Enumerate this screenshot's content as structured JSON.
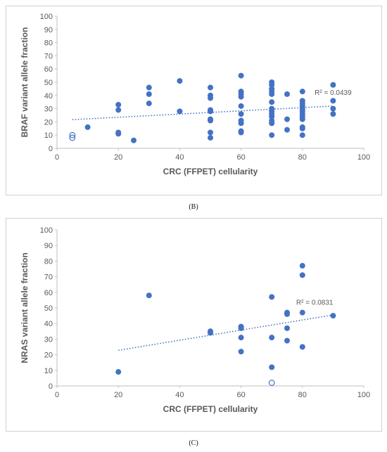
{
  "panels": {
    "b": {
      "caption": "(B)"
    },
    "c": {
      "caption": "(C)"
    }
  },
  "chart_data": [
    {
      "type": "scatter",
      "panel": "B",
      "title": "",
      "xlabel": "CRC (FFPET) cellularity",
      "ylabel": "BRAF variant allele fraction",
      "xlim": [
        0,
        100
      ],
      "ylim": [
        0,
        100
      ],
      "xticks": [
        0,
        20,
        40,
        60,
        80,
        100
      ],
      "yticks": [
        0,
        10,
        20,
        30,
        40,
        50,
        60,
        70,
        80,
        90,
        100
      ],
      "grid": false,
      "marker_color": "#4472c4",
      "points": [
        {
          "x": 10,
          "y": 16
        },
        {
          "x": 20,
          "y": 33
        },
        {
          "x": 20,
          "y": 29
        },
        {
          "x": 20,
          "y": 12
        },
        {
          "x": 20,
          "y": 11
        },
        {
          "x": 25,
          "y": 6
        },
        {
          "x": 30,
          "y": 46
        },
        {
          "x": 30,
          "y": 41
        },
        {
          "x": 30,
          "y": 34
        },
        {
          "x": 40,
          "y": 51
        },
        {
          "x": 40,
          "y": 28
        },
        {
          "x": 50,
          "y": 46
        },
        {
          "x": 50,
          "y": 40
        },
        {
          "x": 50,
          "y": 38
        },
        {
          "x": 50,
          "y": 29
        },
        {
          "x": 50,
          "y": 28
        },
        {
          "x": 50,
          "y": 22
        },
        {
          "x": 50,
          "y": 21
        },
        {
          "x": 50,
          "y": 12
        },
        {
          "x": 50,
          "y": 8
        },
        {
          "x": 60,
          "y": 55
        },
        {
          "x": 60,
          "y": 43
        },
        {
          "x": 60,
          "y": 41
        },
        {
          "x": 60,
          "y": 39
        },
        {
          "x": 60,
          "y": 32
        },
        {
          "x": 60,
          "y": 26
        },
        {
          "x": 60,
          "y": 21
        },
        {
          "x": 60,
          "y": 19
        },
        {
          "x": 60,
          "y": 13
        },
        {
          "x": 60,
          "y": 12
        },
        {
          "x": 70,
          "y": 50
        },
        {
          "x": 70,
          "y": 48
        },
        {
          "x": 70,
          "y": 45
        },
        {
          "x": 70,
          "y": 43
        },
        {
          "x": 70,
          "y": 41
        },
        {
          "x": 70,
          "y": 35
        },
        {
          "x": 70,
          "y": 30
        },
        {
          "x": 70,
          "y": 28
        },
        {
          "x": 70,
          "y": 26
        },
        {
          "x": 70,
          "y": 24
        },
        {
          "x": 70,
          "y": 21
        },
        {
          "x": 70,
          "y": 19
        },
        {
          "x": 70,
          "y": 10
        },
        {
          "x": 75,
          "y": 41
        },
        {
          "x": 75,
          "y": 22
        },
        {
          "x": 75,
          "y": 14
        },
        {
          "x": 80,
          "y": 43
        },
        {
          "x": 80,
          "y": 36
        },
        {
          "x": 80,
          "y": 34
        },
        {
          "x": 80,
          "y": 32
        },
        {
          "x": 80,
          "y": 30
        },
        {
          "x": 80,
          "y": 28
        },
        {
          "x": 80,
          "y": 26
        },
        {
          "x": 80,
          "y": 24
        },
        {
          "x": 80,
          "y": 22
        },
        {
          "x": 80,
          "y": 16
        },
        {
          "x": 80,
          "y": 15
        },
        {
          "x": 80,
          "y": 10
        },
        {
          "x": 90,
          "y": 48
        },
        {
          "x": 90,
          "y": 36
        },
        {
          "x": 90,
          "y": 30
        },
        {
          "x": 90,
          "y": 26
        }
      ],
      "open_points": [
        {
          "x": 5,
          "y": 10
        },
        {
          "x": 5,
          "y": 8
        }
      ],
      "trendline": {
        "x": [
          5,
          90
        ],
        "y": [
          21.7,
          32.0
        ],
        "label": "R² = 0.0439",
        "label_x": 90,
        "label_y": 40.5
      }
    },
    {
      "type": "scatter",
      "panel": "C",
      "title": "",
      "xlabel": "CRC (FFPET) cellularity",
      "ylabel": "NRAS variant allele fraction",
      "xlim": [
        0,
        100
      ],
      "ylim": [
        0,
        100
      ],
      "xticks": [
        0,
        20,
        40,
        60,
        80,
        100
      ],
      "yticks": [
        0,
        10,
        20,
        30,
        40,
        50,
        60,
        70,
        80,
        90,
        100
      ],
      "grid": false,
      "marker_color": "#4472c4",
      "points": [
        {
          "x": 20,
          "y": 9
        },
        {
          "x": 30,
          "y": 58
        },
        {
          "x": 50,
          "y": 35
        },
        {
          "x": 50,
          "y": 34
        },
        {
          "x": 60,
          "y": 38
        },
        {
          "x": 60,
          "y": 37
        },
        {
          "x": 60,
          "y": 31
        },
        {
          "x": 60,
          "y": 22
        },
        {
          "x": 70,
          "y": 57
        },
        {
          "x": 70,
          "y": 31
        },
        {
          "x": 70,
          "y": 12
        },
        {
          "x": 75,
          "y": 47
        },
        {
          "x": 75,
          "y": 46
        },
        {
          "x": 75,
          "y": 37
        },
        {
          "x": 75,
          "y": 29
        },
        {
          "x": 80,
          "y": 77
        },
        {
          "x": 80,
          "y": 71
        },
        {
          "x": 80,
          "y": 47
        },
        {
          "x": 80,
          "y": 25
        },
        {
          "x": 90,
          "y": 45
        }
      ],
      "open_points": [
        {
          "x": 70,
          "y": 2
        }
      ],
      "trendline": {
        "x": [
          20,
          90
        ],
        "y": [
          22.8,
          45.5
        ],
        "label": "R² = 0.0831",
        "label_x": 84,
        "label_y": 52
      }
    }
  ]
}
